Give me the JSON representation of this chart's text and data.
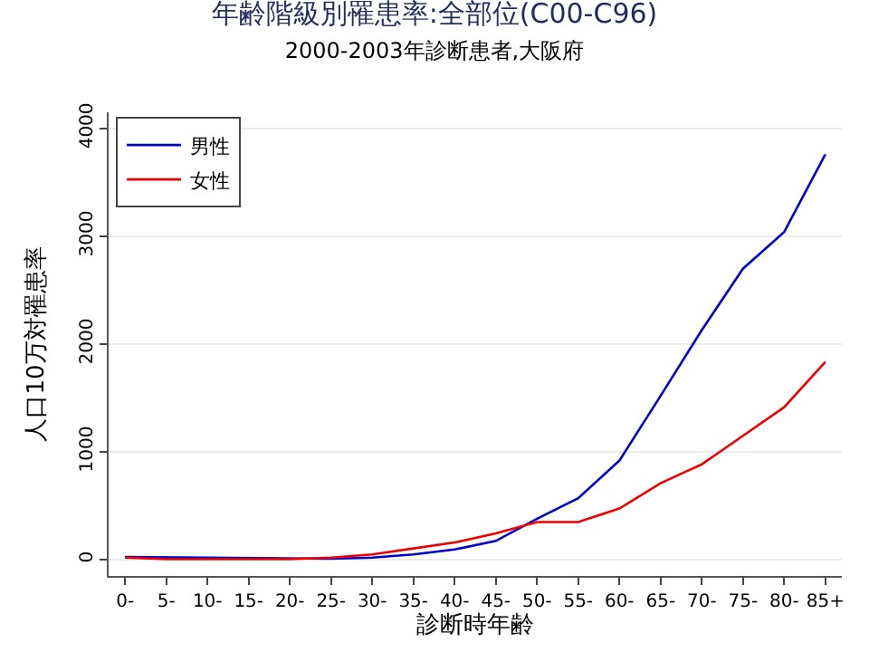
{
  "chart_data": {
    "type": "line",
    "title": "年齢階級別罹患率:全部位(C00-C96)",
    "subtitle": "2000-2003年診断患者,大阪府",
    "xlabel": "診断時年齢",
    "ylabel": "人口10万対罹患率",
    "categories": [
      "0-",
      "5-",
      "10-",
      "15-",
      "20-",
      "25-",
      "30-",
      "35-",
      "40-",
      "45-",
      "50-",
      "55-",
      "60-",
      "65-",
      "70-",
      "75-",
      "80-",
      "85+"
    ],
    "series": [
      {
        "name": "男性",
        "color": "#0000cc",
        "values": [
          25,
          null,
          null,
          null,
          null,
          10,
          20,
          50,
          95,
          175,
          380,
          570,
          920,
          1520,
          2130,
          2700,
          3040,
          3760
        ]
      },
      {
        "name": "女性",
        "color": "#ee0000",
        "values": [
          20,
          5,
          5,
          5,
          5,
          20,
          50,
          105,
          160,
          245,
          350,
          350,
          475,
          710,
          885,
          1150,
          1415,
          1835
        ]
      }
    ],
    "ylim": [
      -150,
      4150
    ],
    "yticks": [
      0,
      1000,
      2000,
      3000,
      4000
    ],
    "grid": "y",
    "legend": "top left",
    "marker": "none",
    "line_style": "solid"
  }
}
